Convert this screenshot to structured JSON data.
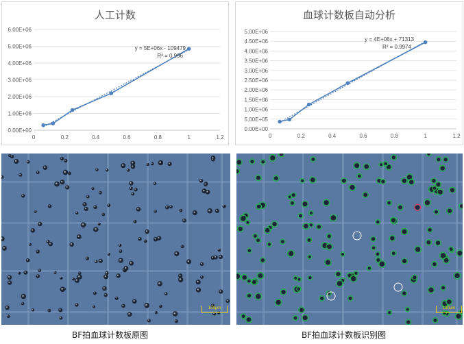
{
  "chart_data": [
    {
      "type": "scatter",
      "title": "人工计数",
      "x": [
        0.0625,
        0.125,
        0.25,
        0.5,
        1
      ],
      "y": [
        300000,
        400000,
        1200000,
        2200000,
        4850000
      ],
      "xlim": [
        0,
        1.2
      ],
      "ylim": [
        0,
        6000000
      ],
      "xticks": [
        "0",
        "0.2",
        "0.4",
        "0.6",
        "0.8",
        "1",
        "1.2"
      ],
      "yticks": [
        "0.00E+00",
        "1.00E+06",
        "2.00E+06",
        "3.00E+06",
        "4.00E+06",
        "5.00E+06",
        "6.00E+06"
      ],
      "trendline_equation": "y = 5E+06x - 109479",
      "r_squared": "R² = 0.996",
      "color": "#4f81bd"
    },
    {
      "type": "scatter",
      "title": "血球计数板自动分析",
      "x": [
        0.0625,
        0.125,
        0.25,
        0.5,
        1
      ],
      "y": [
        370000,
        480000,
        1250000,
        2350000,
        4450000
      ],
      "xlim": [
        0,
        1.2
      ],
      "ylim": [
        0,
        5000000
      ],
      "xticks": [
        "0",
        "0.2",
        "0.4",
        "0.6",
        "0.8",
        "1",
        "1.2"
      ],
      "yticks": [
        "0.00E+00",
        "5.00E+05",
        "1.00E+06",
        "1.50E+06",
        "2.00E+06",
        "2.50E+06",
        "3.00E+06",
        "3.50E+06",
        "4.00E+06",
        "4.50E+06",
        "5.00E+06"
      ],
      "trendline_equation": "y = 4E+06x + 71313",
      "r_squared": "R² = 0.9974",
      "color": "#4f81bd"
    }
  ],
  "images": {
    "left_caption": "BF拍血球计数板原图",
    "right_caption": "BF拍血球计数板识别图",
    "scale_label": "100μm"
  }
}
